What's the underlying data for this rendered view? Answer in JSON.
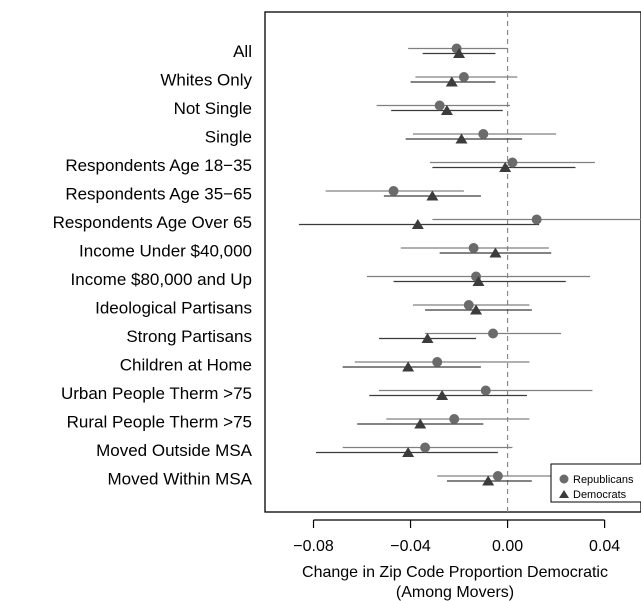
{
  "chart_data": {
    "type": "scatter",
    "subtype": "dot-and-whisker",
    "orientation": "horizontal",
    "xlabel": [
      "Change in Zip Code Proportion Democratic",
      "(Among Movers)"
    ],
    "xlim": [
      -0.1,
      0.055
    ],
    "xticks": [
      -0.08,
      -0.04,
      0.0,
      0.04
    ],
    "xtick_labels": [
      "−0.08",
      "−0.04",
      "0.00",
      "0.04"
    ],
    "reference_line": 0,
    "grid": false,
    "legend_position": "bottom-right",
    "categories": [
      "All",
      "Whites Only",
      "Not Single",
      "Single",
      "Respondents Age 18−35",
      "Respondents Age 35−65",
      "Respondents Age Over 65",
      "Income Under $40,000",
      "Income $80,000 and Up",
      "Ideological Partisans",
      "Strong Partisans",
      "Children at Home",
      "Urban People Therm >75",
      "Rural People Therm >75",
      "Moved Outside MSA",
      "Moved Within MSA"
    ],
    "series": [
      {
        "name": "Republicans",
        "marker": "circle",
        "color": "#6b6b6b",
        "estimate": [
          -0.021,
          -0.018,
          -0.028,
          -0.01,
          0.002,
          -0.047,
          0.012,
          -0.014,
          -0.013,
          -0.016,
          -0.006,
          -0.029,
          -0.009,
          -0.022,
          -0.034,
          -0.004
        ],
        "ci_low": [
          -0.041,
          -0.038,
          -0.054,
          -0.039,
          -0.032,
          -0.075,
          -0.031,
          -0.044,
          -0.058,
          -0.039,
          -0.034,
          -0.063,
          -0.053,
          -0.05,
          -0.068,
          -0.029
        ],
        "ci_high": [
          0.0,
          0.004,
          0.001,
          0.02,
          0.036,
          -0.018,
          0.055,
          0.017,
          0.034,
          0.009,
          0.022,
          0.009,
          0.035,
          0.009,
          0.002,
          0.02
        ]
      },
      {
        "name": "Democrats",
        "marker": "triangle",
        "color": "#3c3c3c",
        "estimate": [
          -0.02,
          -0.023,
          -0.025,
          -0.019,
          -0.001,
          -0.031,
          -0.037,
          -0.005,
          -0.012,
          -0.013,
          -0.033,
          -0.041,
          -0.027,
          -0.036,
          -0.041,
          -0.008
        ],
        "ci_low": [
          -0.035,
          -0.04,
          -0.048,
          -0.042,
          -0.031,
          -0.051,
          -0.086,
          -0.028,
          -0.047,
          -0.034,
          -0.053,
          -0.068,
          -0.057,
          -0.062,
          -0.079,
          -0.025
        ],
        "ci_high": [
          -0.005,
          -0.005,
          -0.002,
          0.006,
          0.028,
          -0.011,
          0.013,
          0.018,
          0.024,
          0.01,
          -0.013,
          -0.011,
          0.008,
          -0.01,
          -0.004,
          0.01
        ]
      }
    ]
  }
}
